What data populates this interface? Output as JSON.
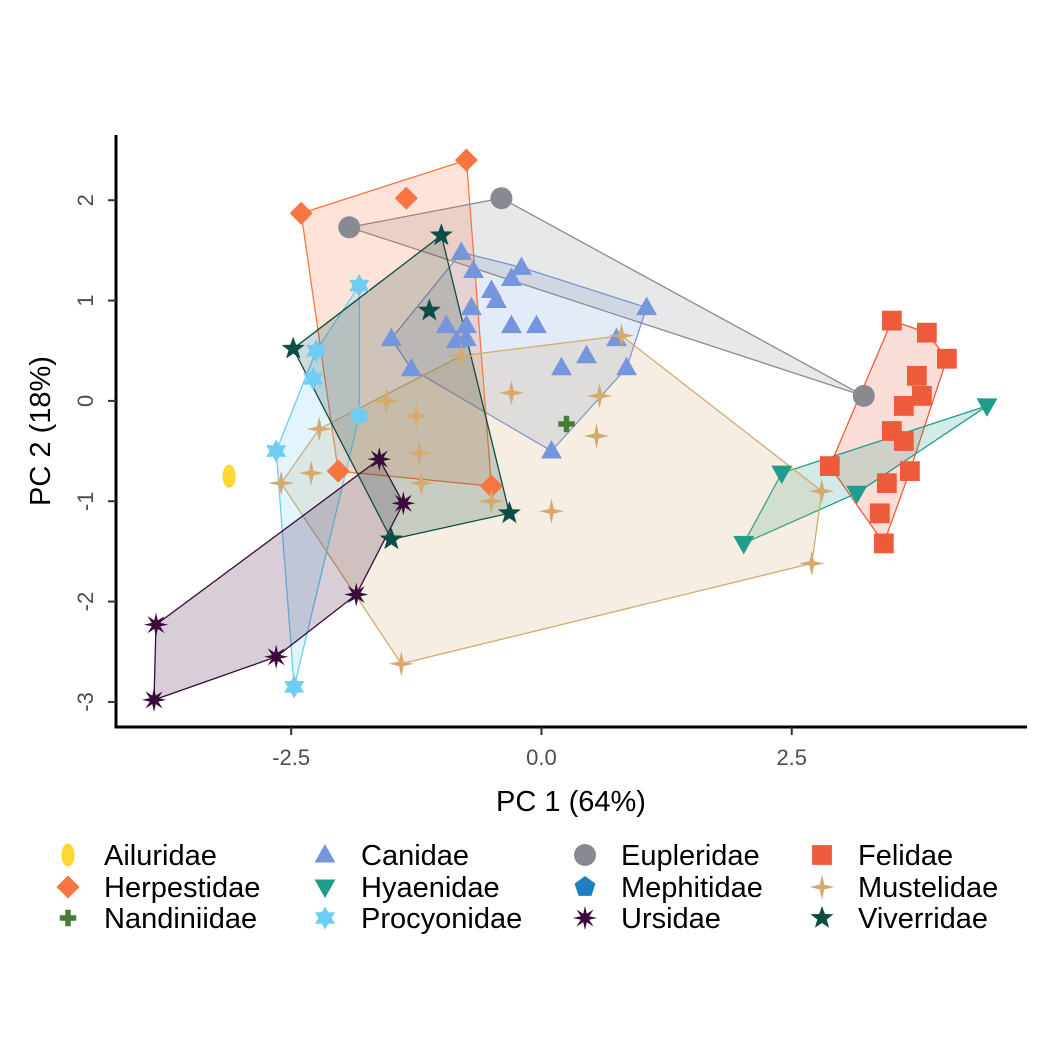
{
  "chart_data": {
    "type": "scatter",
    "title": "",
    "xlabel": "PC 1 (64%)",
    "ylabel": "PC 2 (18%)",
    "xlim": [
      -4.25,
      4.85
    ],
    "ylim": [
      -3.25,
      2.65
    ],
    "xticks": [
      -2.5,
      0.0,
      2.5
    ],
    "yticks": [
      -3,
      -2,
      -1,
      0,
      1,
      2
    ],
    "xtick_labels": [
      "-2.5",
      "0.0",
      "2.5"
    ],
    "ytick_labels": [
      "-3",
      "-2",
      "-1",
      "0",
      "1",
      "2"
    ],
    "grid": false,
    "legend_position": "bottom",
    "convex_hulls": true,
    "series": [
      {
        "name": "Ailuridae",
        "color": "#FDD835",
        "shape": "ellipse",
        "points": [
          [
            -3.12,
            -0.75
          ]
        ]
      },
      {
        "name": "Canidae",
        "color": "#7596DD",
        "shape": "triangle-up",
        "points": [
          [
            -0.8,
            1.48
          ],
          [
            -0.68,
            1.3
          ],
          [
            -0.5,
            1.1
          ],
          [
            -0.3,
            1.22
          ],
          [
            -0.2,
            1.33
          ],
          [
            -0.45,
            1.0
          ],
          [
            -0.3,
            0.75
          ],
          [
            -0.05,
            0.75
          ],
          [
            -0.7,
            0.93
          ],
          [
            -0.95,
            0.75
          ],
          [
            -0.75,
            0.75
          ],
          [
            -0.75,
            0.62
          ],
          [
            -1.5,
            0.62
          ],
          [
            -1.3,
            0.32
          ],
          [
            -0.85,
            0.6
          ],
          [
            0.75,
            0.62
          ],
          [
            1.05,
            0.93
          ],
          [
            0.45,
            0.45
          ],
          [
            0.85,
            0.33
          ],
          [
            0.2,
            0.33
          ],
          [
            0.1,
            -0.5
          ]
        ]
      },
      {
        "name": "Eupleridae",
        "color": "#878B91",
        "shape": "circle",
        "points": [
          [
            -0.4,
            2.02
          ],
          [
            -1.92,
            1.73
          ],
          [
            3.22,
            0.05
          ]
        ]
      },
      {
        "name": "Felidae",
        "color": "#EE5B3A",
        "shape": "square",
        "points": [
          [
            3.5,
            0.8
          ],
          [
            3.85,
            0.68
          ],
          [
            4.05,
            0.42
          ],
          [
            3.75,
            0.25
          ],
          [
            3.8,
            0.05
          ],
          [
            3.62,
            -0.05
          ],
          [
            3.5,
            -0.3
          ],
          [
            3.62,
            -0.4
          ],
          [
            3.68,
            -0.7
          ],
          [
            3.45,
            -0.82
          ],
          [
            3.38,
            -1.12
          ],
          [
            3.42,
            -1.42
          ],
          [
            2.88,
            -0.65
          ]
        ]
      },
      {
        "name": "Herpestidae",
        "color": "#F87542",
        "shape": "diamond",
        "points": [
          [
            -0.75,
            2.4
          ],
          [
            -1.35,
            2.02
          ],
          [
            -2.4,
            1.87
          ],
          [
            -2.03,
            -0.7
          ],
          [
            -0.5,
            -0.85
          ]
        ]
      },
      {
        "name": "Hyaenidae",
        "color": "#1F9C8A",
        "shape": "triangle-down",
        "points": [
          [
            4.45,
            -0.05
          ],
          [
            2.4,
            -0.72
          ],
          [
            2.02,
            -1.42
          ],
          [
            3.15,
            -0.92
          ]
        ]
      },
      {
        "name": "Mephitidae",
        "color": "#1B7FC1",
        "shape": "pentagon",
        "points": []
      },
      {
        "name": "Mustelidae",
        "color": "#D4AA6F",
        "shape": "four-point-star",
        "points": [
          [
            0.8,
            0.65
          ],
          [
            -0.8,
            0.45
          ],
          [
            -0.3,
            0.08
          ],
          [
            0.58,
            0.05
          ],
          [
            -1.55,
            0.0
          ],
          [
            -1.25,
            -0.15
          ],
          [
            0.55,
            -0.35
          ],
          [
            -2.22,
            -0.28
          ],
          [
            -1.22,
            -0.52
          ],
          [
            -2.3,
            -0.72
          ],
          [
            -1.2,
            -0.82
          ],
          [
            -2.6,
            -0.82
          ],
          [
            -0.5,
            -1.0
          ],
          [
            0.1,
            -1.1
          ],
          [
            2.8,
            -0.9
          ],
          [
            2.7,
            -1.62
          ],
          [
            -1.4,
            -2.62
          ]
        ]
      },
      {
        "name": "Nandiniidae",
        "color": "#4A7A3A",
        "shape": "plus",
        "points": [
          [
            0.25,
            -0.23
          ]
        ]
      },
      {
        "name": "Procyonidae",
        "color": "#6DCDF4",
        "shape": "six-point-star",
        "points": [
          [
            -1.82,
            1.15
          ],
          [
            -2.25,
            0.5
          ],
          [
            -2.28,
            0.22
          ],
          [
            -1.82,
            -0.15
          ],
          [
            -2.65,
            -0.5
          ],
          [
            -2.47,
            -2.85
          ]
        ]
      },
      {
        "name": "Ursidae",
        "color": "#3A0A3B",
        "shape": "eight-point-star",
        "points": [
          [
            -1.62,
            -0.58
          ],
          [
            -1.38,
            -1.02
          ],
          [
            -1.85,
            -1.93
          ],
          [
            -2.65,
            -2.55
          ],
          [
            -3.85,
            -2.23
          ],
          [
            -3.87,
            -2.98
          ]
        ]
      },
      {
        "name": "Viverridae",
        "color": "#0D4D43",
        "shape": "star",
        "points": [
          [
            -1.0,
            1.65
          ],
          [
            -1.12,
            0.9
          ],
          [
            -2.48,
            0.52
          ],
          [
            -0.32,
            -1.12
          ],
          [
            -1.5,
            -1.38
          ]
        ]
      }
    ],
    "legend_order": [
      "Ailuridae",
      "Canidae",
      "Eupleridae",
      "Felidae",
      "Herpestidae",
      "Hyaenidae",
      "Mephitidae",
      "Mustelidae",
      "Nandiniidae",
      "Procyonidae",
      "Ursidae",
      "Viverridae"
    ]
  }
}
